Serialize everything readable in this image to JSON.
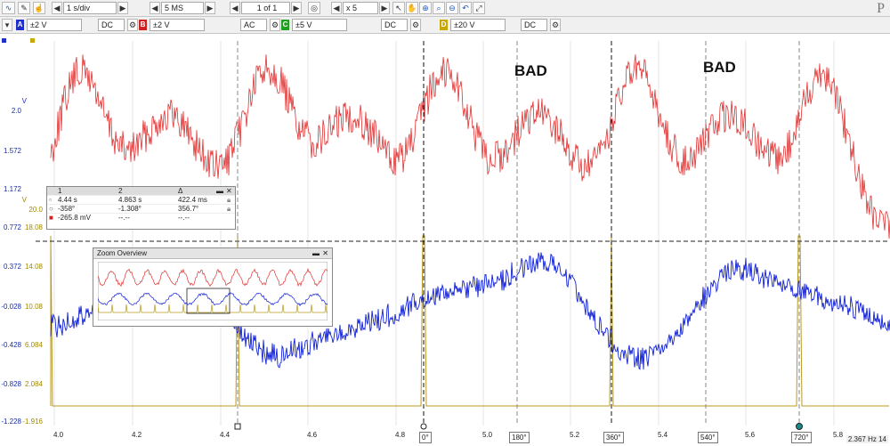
{
  "toolbar": {
    "timebase": "1 s/div",
    "samples": "5 MS",
    "capture": "1 of 1",
    "zoom": "x 5",
    "channels": [
      {
        "letter": "A",
        "range": "±2 V",
        "coupling": "DC",
        "color": "#2030c8"
      },
      {
        "letter": "B",
        "range": "±2 V",
        "coupling": "AC",
        "color": "#d02020"
      },
      {
        "letter": "C",
        "range": "±5 V",
        "coupling": "DC",
        "color": "#20a020"
      },
      {
        "letter": "D",
        "range": "±20 V",
        "coupling": "DC",
        "color": "#c8a800"
      }
    ],
    "brand": "P"
  },
  "axes": {
    "red_unit": "V",
    "red_ticks": [
      "2.0",
      "1.572",
      "1.172",
      "0.772",
      "0.372",
      "-0.028",
      "-0.428",
      "-0.828",
      "-1.228"
    ],
    "yellow_unit": "V",
    "yellow_ticks": [
      "20.0",
      "18.08",
      "14.08",
      "10.08",
      "6.084",
      "2.084",
      "-1.916"
    ],
    "x_ticks": [
      "4.0",
      "4.2",
      "4.4",
      "4.6",
      "4.8",
      "5.0",
      "5.2",
      "5.4",
      "5.6",
      "5.8"
    ],
    "phase_markers": [
      "0°",
      "180°",
      "360°",
      "540°",
      "720°"
    ],
    "footer_text": "2.367 Hz   14"
  },
  "annotations": [
    "BAD",
    "BAD"
  ],
  "cursor_table": {
    "header": [
      "1",
      "2",
      "Δ"
    ],
    "rows": [
      [
        "4.44 s",
        "4.863 s",
        "422.4 ms"
      ],
      [
        "-358°",
        "-1.308°",
        "356.7°"
      ],
      [
        "-265.8 mV",
        "--.--",
        "--.--"
      ]
    ]
  },
  "zoom_overview": {
    "title": "Zoom Overview"
  },
  "colors": {
    "red": "#e03030",
    "blue": "#1020d8",
    "yellow": "#b89a20",
    "grid": "#999999"
  }
}
